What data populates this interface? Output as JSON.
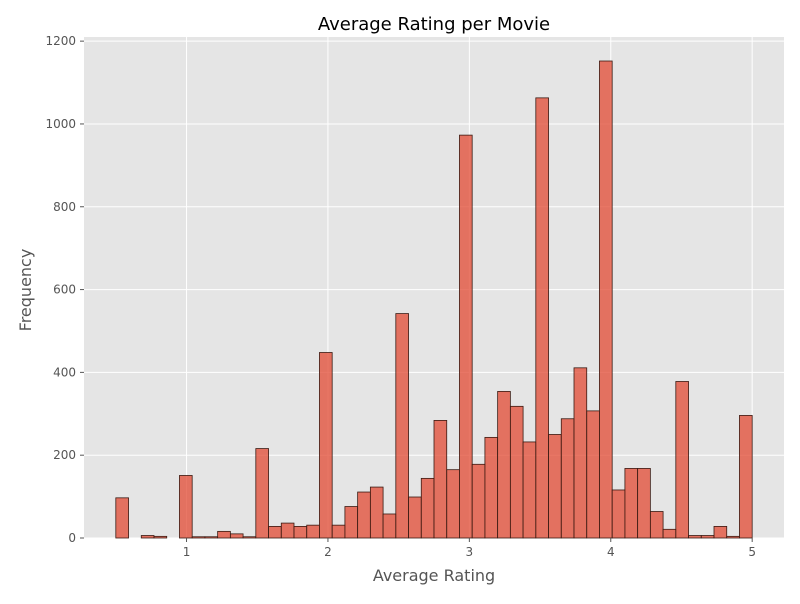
{
  "chart_data": {
    "type": "bar",
    "title": "Average Rating per Movie",
    "xlabel": "Average Rating",
    "ylabel": "Frequency",
    "xlim": [
      0.275,
      5.225
    ],
    "ylim": [
      0,
      1210
    ],
    "xticks": [
      1,
      2,
      3,
      4,
      5
    ],
    "yticks": [
      0,
      200,
      400,
      600,
      800,
      1000,
      1200
    ],
    "grid": true,
    "style": "ggplot",
    "bar_color": "#E24A33",
    "bins_start": 0.5,
    "bin_width": 0.09,
    "values": [
      97,
      0,
      6,
      4,
      0,
      151,
      3,
      3,
      16,
      10,
      3,
      216,
      28,
      36,
      28,
      31,
      448,
      31,
      76,
      111,
      123,
      58,
      542,
      99,
      144,
      284,
      165,
      973,
      178,
      243,
      354,
      318,
      232,
      1063,
      250,
      288,
      411,
      307,
      1152,
      116,
      168,
      168,
      64,
      21,
      378,
      6,
      6,
      28,
      4,
      296
    ]
  }
}
